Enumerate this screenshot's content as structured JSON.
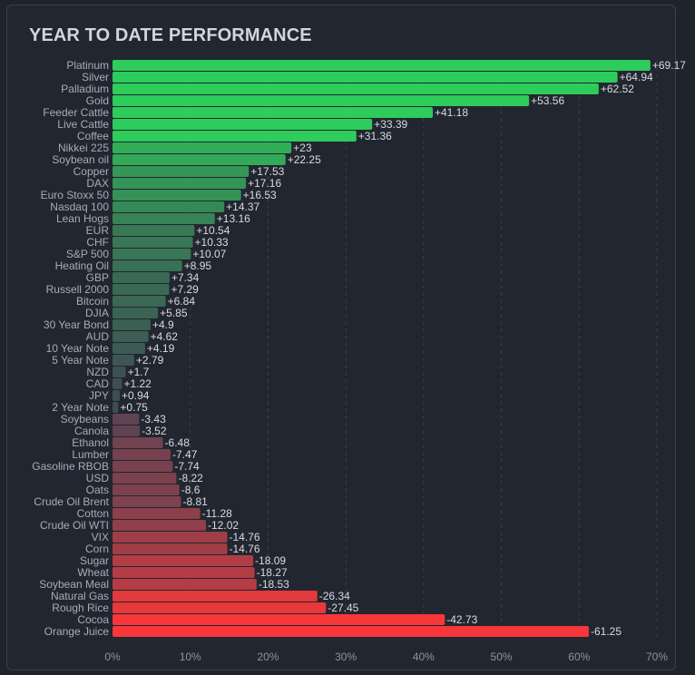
{
  "title": "YEAR TO DATE PERFORMANCE",
  "chart_data": {
    "type": "bar",
    "orientation": "horizontal",
    "title": "YEAR TO DATE PERFORMANCE",
    "xlabel": "",
    "ylabel": "",
    "xlim": [
      0,
      70
    ],
    "x_ticks": [
      "0%",
      "10%",
      "20%",
      "30%",
      "40%",
      "50%",
      "60%",
      "70%"
    ],
    "grid": "vertical dashed",
    "note": "Bar length shows absolute % change; label shows signed value",
    "categories": [
      "Platinum",
      "Silver",
      "Palladium",
      "Gold",
      "Feeder Cattle",
      "Live Cattle",
      "Coffee",
      "Nikkei 225",
      "Soybean oil",
      "Copper",
      "DAX",
      "Euro Stoxx 50",
      "Nasdaq 100",
      "Lean Hogs",
      "EUR",
      "CHF",
      "S&P 500",
      "Heating Oil",
      "GBP",
      "Russell 2000",
      "Bitcoin",
      "DJIA",
      "30 Year Bond",
      "AUD",
      "10 Year Note",
      "5 Year Note",
      "NZD",
      "CAD",
      "JPY",
      "2 Year Note",
      "Soybeans",
      "Canola",
      "Ethanol",
      "Lumber",
      "Gasoline RBOB",
      "USD",
      "Oats",
      "Crude Oil Brent",
      "Cotton",
      "Crude Oil WTI",
      "VIX",
      "Corn",
      "Sugar",
      "Wheat",
      "Soybean Meal",
      "Natural Gas",
      "Rough Rice",
      "Cocoa",
      "Orange Juice"
    ],
    "values": [
      69.17,
      64.94,
      62.52,
      53.56,
      41.18,
      33.39,
      31.36,
      23,
      22.25,
      17.53,
      17.16,
      16.53,
      14.37,
      13.16,
      10.54,
      10.33,
      10.07,
      8.95,
      7.34,
      7.29,
      6.84,
      5.85,
      4.9,
      4.62,
      4.19,
      2.79,
      1.7,
      1.22,
      0.94,
      0.75,
      -3.43,
      -3.52,
      -6.48,
      -7.47,
      -7.74,
      -8.22,
      -8.6,
      -8.81,
      -11.28,
      -12.02,
      -14.76,
      -14.76,
      -18.09,
      -18.27,
      -18.53,
      -26.34,
      -27.45,
      -42.73,
      -61.25
    ],
    "value_labels": [
      "+69.17",
      "+64.94",
      "+62.52",
      "+53.56",
      "+41.18",
      "+33.39",
      "+31.36",
      "+23",
      "+22.25",
      "+17.53",
      "+17.16",
      "+16.53",
      "+14.37",
      "+13.16",
      "+10.54",
      "+10.33",
      "+10.07",
      "+8.95",
      "+7.34",
      "+7.29",
      "+6.84",
      "+5.85",
      "+4.9",
      "+4.62",
      "+4.19",
      "+2.79",
      "+1.7",
      "+1.22",
      "+0.94",
      "+0.75",
      "-3.43",
      "-3.52",
      "-6.48",
      "-7.47",
      "-7.74",
      "-8.22",
      "-8.6",
      "-8.81",
      "-11.28",
      "-12.02",
      "-14.76",
      "-14.76",
      "-18.09",
      "-18.27",
      "-18.53",
      "-26.34",
      "-27.45",
      "-42.73",
      "-61.25"
    ],
    "colors": {
      "positive_max": "#2ecc5a",
      "neutral_positive": "#3e4a52",
      "neutral_negative": "#574454",
      "negative_max": "#f7373a"
    }
  }
}
